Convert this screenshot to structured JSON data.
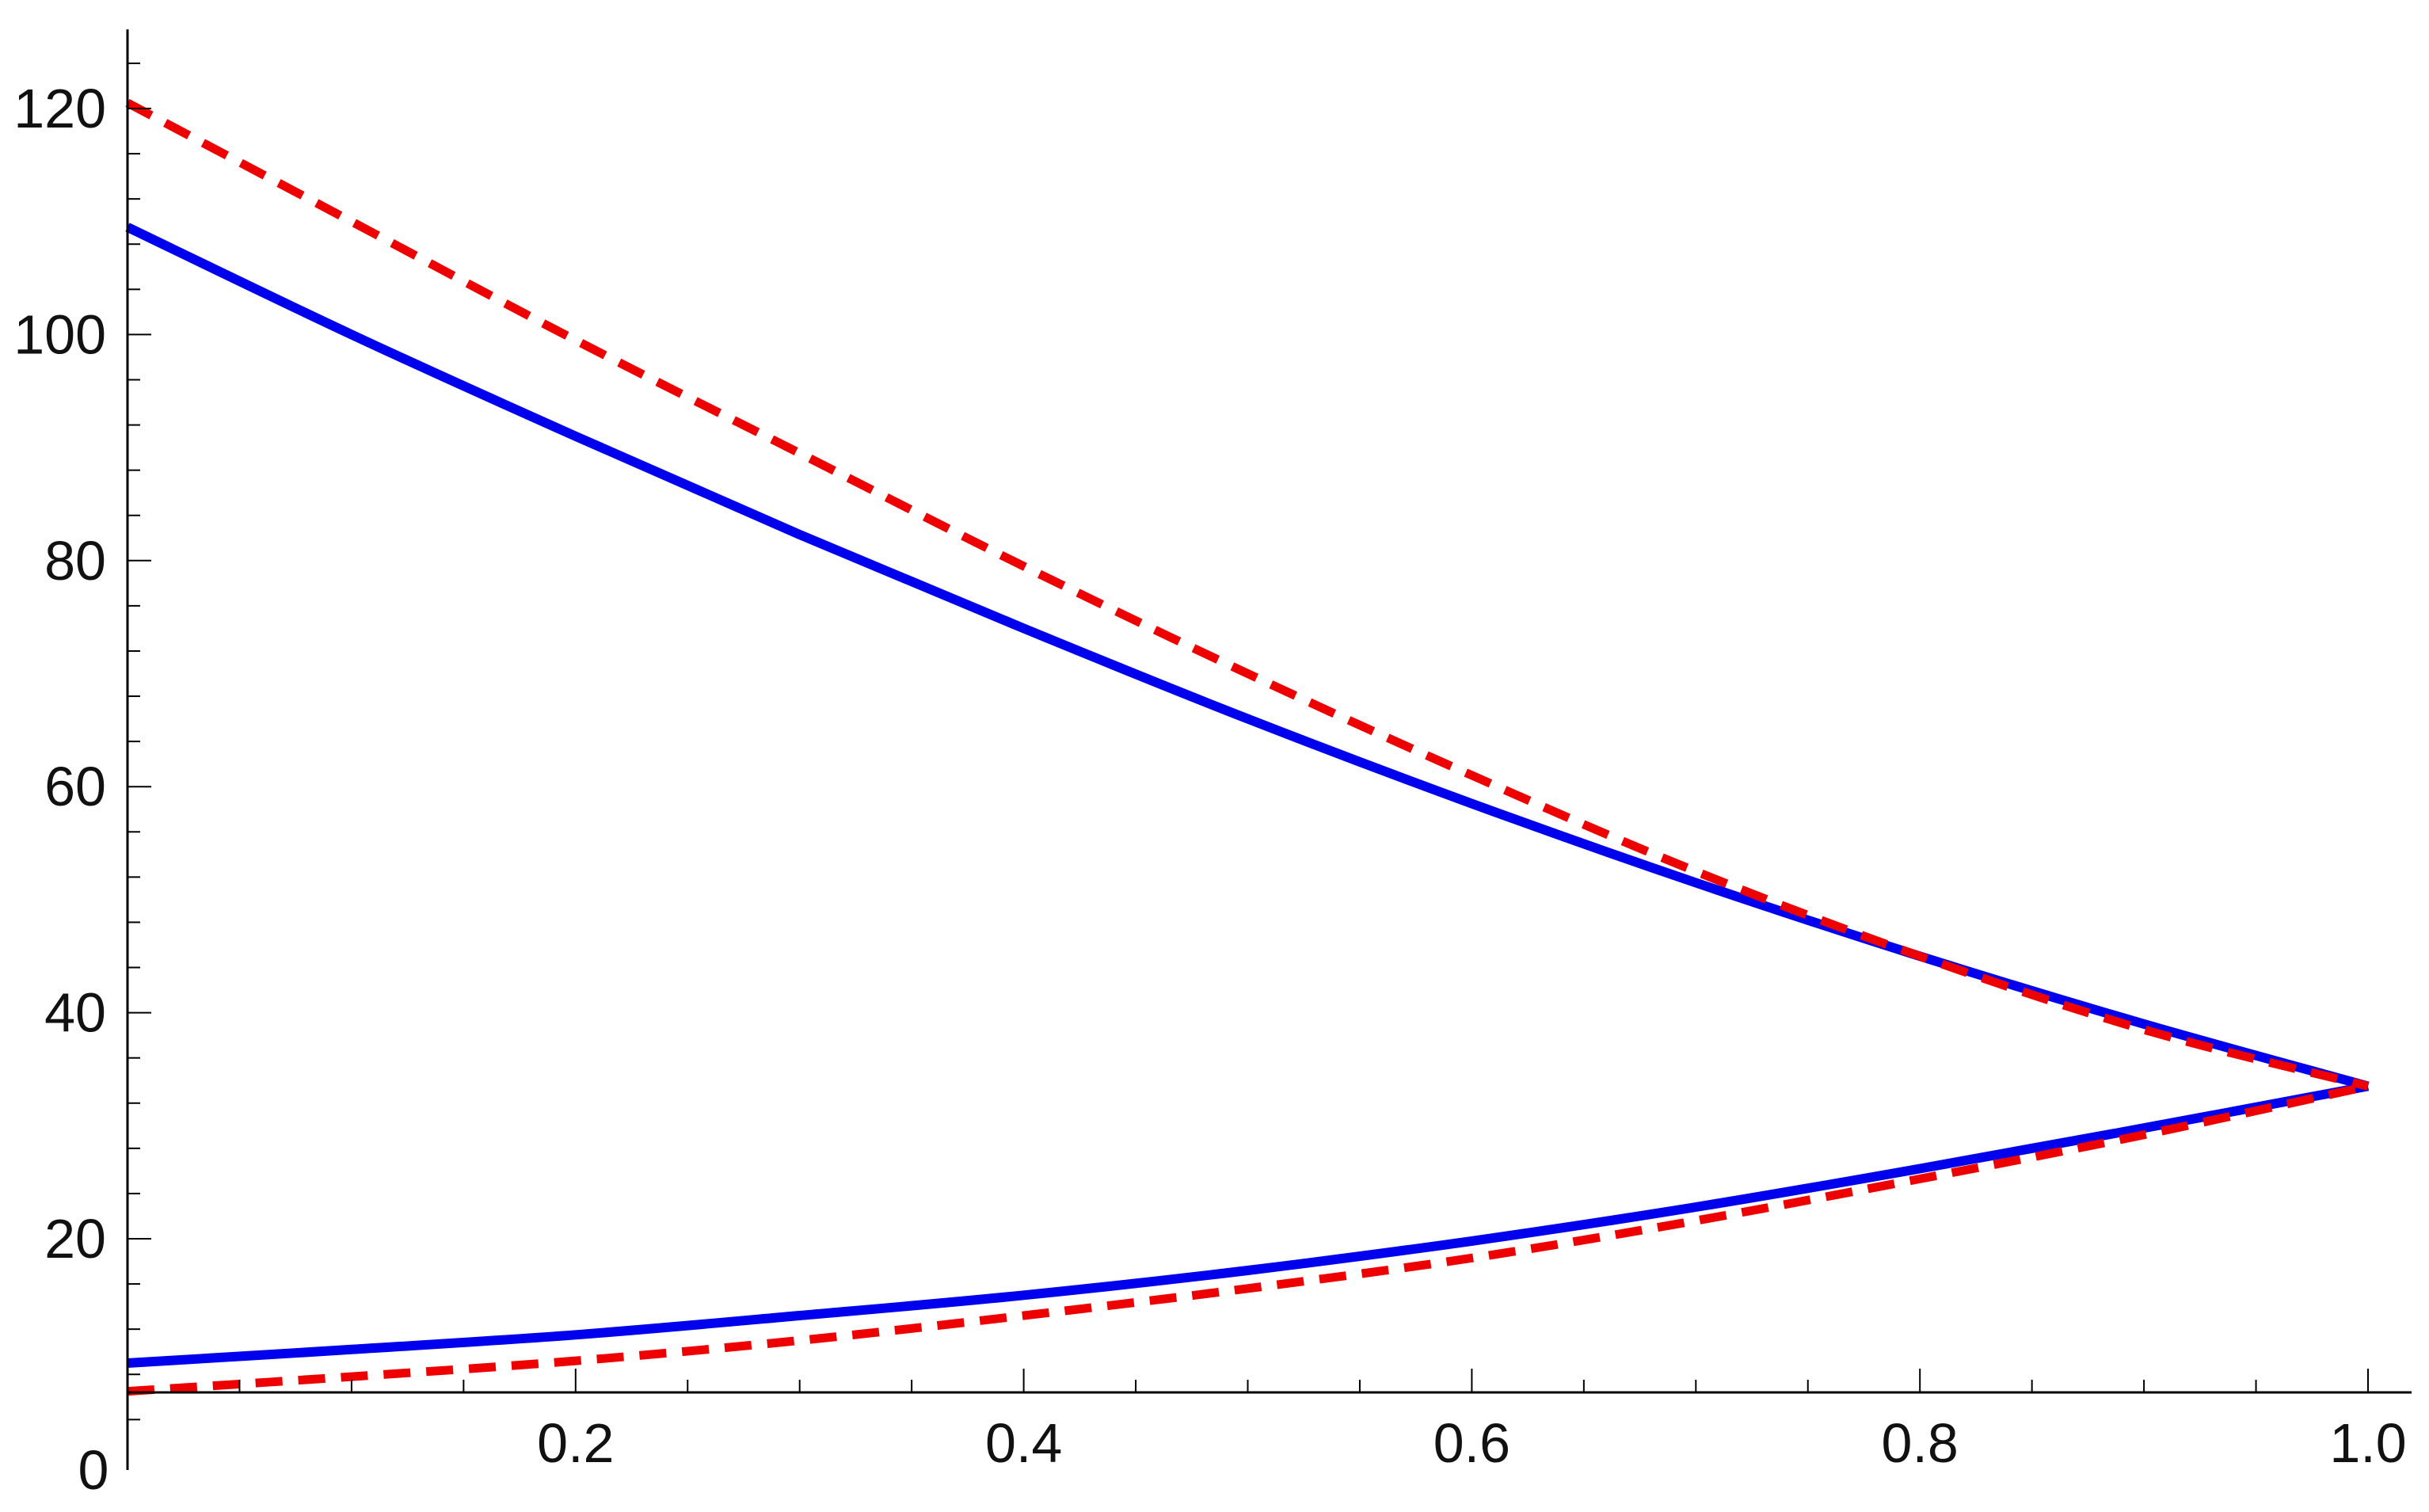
{
  "chart_data": {
    "type": "line",
    "title": "",
    "xlabel": "",
    "ylabel": "",
    "xlim": [
      0,
      1.0
    ],
    "ylim": [
      0,
      127
    ],
    "x_ticks": [
      {
        "value": 0.2,
        "label": "0.2"
      },
      {
        "value": 0.4,
        "label": "0.4"
      },
      {
        "value": 0.6,
        "label": "0.6"
      },
      {
        "value": 0.8,
        "label": "0.8"
      },
      {
        "value": 1.0,
        "label": "1.0"
      }
    ],
    "y_ticks": [
      {
        "value": 20,
        "label": "20"
      },
      {
        "value": 40,
        "label": "40"
      },
      {
        "value": 60,
        "label": "60"
      },
      {
        "value": 80,
        "label": "80"
      },
      {
        "value": 100,
        "label": "100"
      },
      {
        "value": 120,
        "label": "120"
      }
    ],
    "origin_label": "0",
    "grid": false,
    "legend": "none",
    "series": [
      {
        "style": "solid",
        "color": "#0000ee",
        "x": [
          0,
          0.1,
          0.2,
          0.3,
          0.4,
          0.5,
          0.6,
          0.7,
          0.8,
          0.9,
          1.0
        ],
        "y": [
          109.5,
          100.0,
          91.0,
          82.3,
          74.0,
          66.0,
          58.5,
          51.5,
          45.0,
          39.0,
          33.5
        ]
      },
      {
        "style": "solid",
        "color": "#0000ee",
        "x": [
          0,
          0.1,
          0.2,
          0.3,
          0.4,
          0.5,
          0.6,
          0.7,
          0.8,
          0.9,
          1.0
        ],
        "y": [
          9.0,
          10.2,
          11.5,
          13.2,
          15.0,
          17.2,
          19.8,
          22.8,
          26.2,
          29.8,
          33.5
        ]
      },
      {
        "style": "dashed",
        "color": "#ee0000",
        "x": [
          0,
          0.1,
          0.2,
          0.3,
          0.4,
          0.5,
          0.6,
          0.7,
          0.8,
          0.9,
          1.0
        ],
        "y": [
          120.5,
          110.0,
          99.5,
          89.5,
          79.5,
          70.0,
          61.0,
          52.5,
          45.0,
          38.5,
          33.5
        ]
      },
      {
        "style": "dashed",
        "color": "#ee0000",
        "x": [
          0,
          0.1,
          0.2,
          0.3,
          0.4,
          0.5,
          0.6,
          0.7,
          0.8,
          0.9,
          1.0
        ],
        "y": [
          6.5,
          7.8,
          9.2,
          11.0,
          13.2,
          15.6,
          18.3,
          21.6,
          25.3,
          29.2,
          33.5
        ]
      }
    ]
  }
}
